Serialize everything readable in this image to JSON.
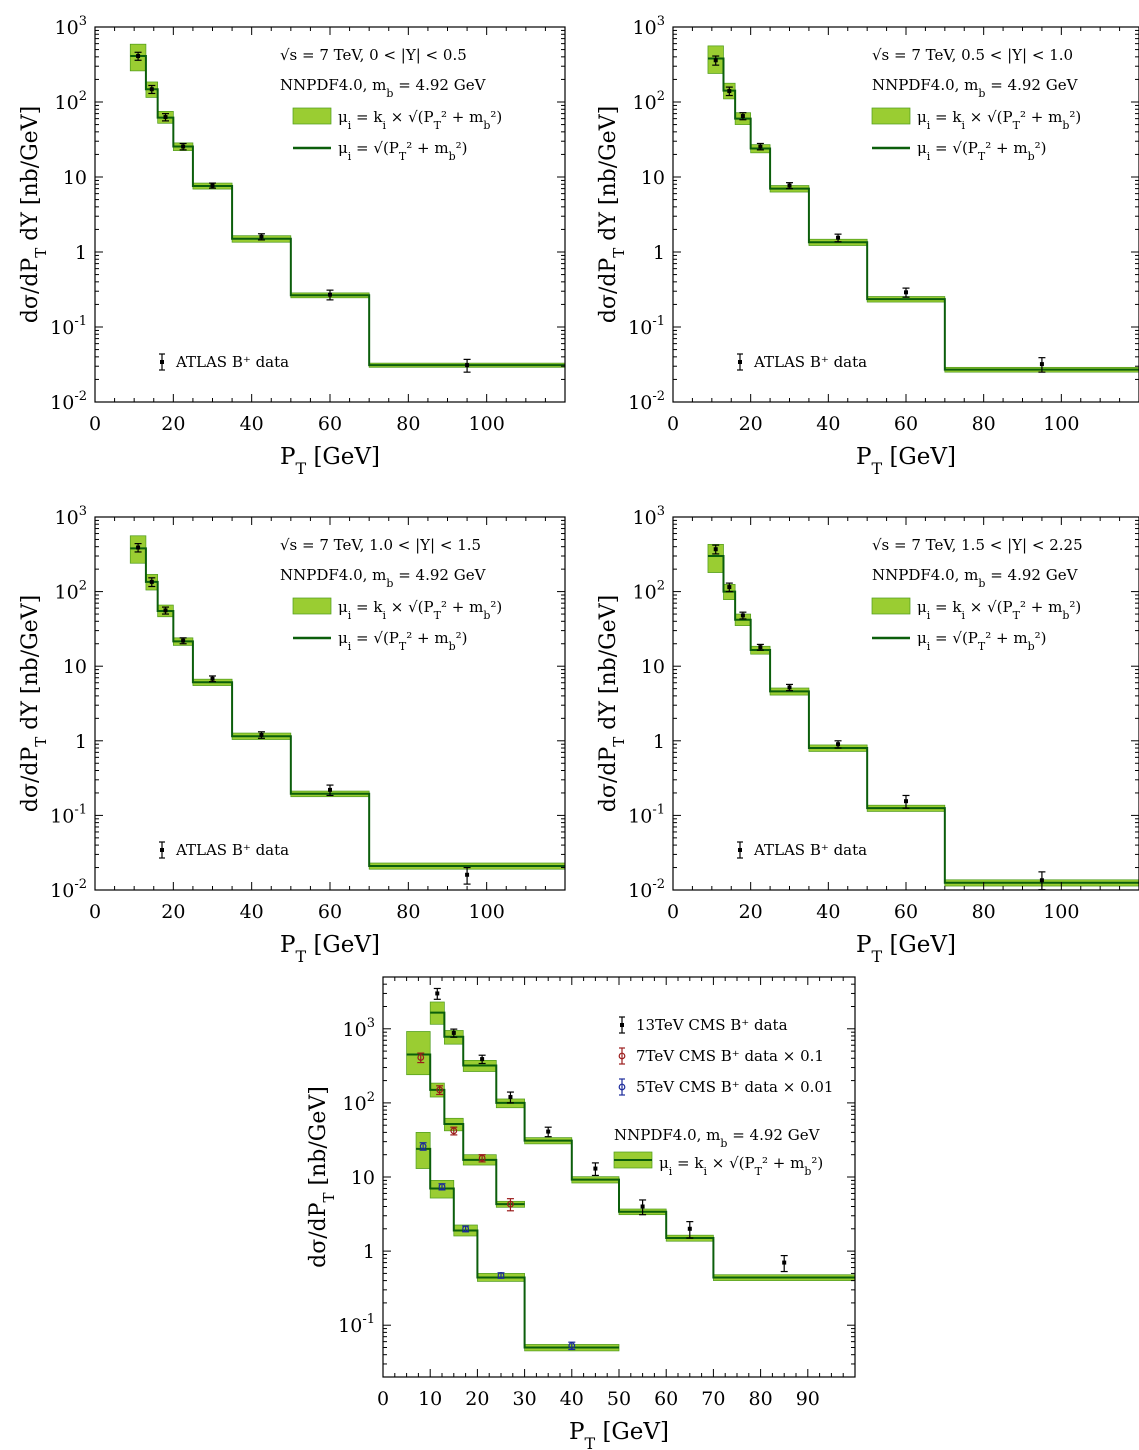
{
  "colors": {
    "band": "#9acd32",
    "band_edge": "#4c9a1a",
    "line": "#0b5e0b",
    "data_atlas": "#000000",
    "data_13": "#000000",
    "data_7": "#9b1c1c",
    "data_5": "#1c2a9b"
  },
  "chart_data": [
    {
      "id": "atlas1",
      "type": "step",
      "xlim": [
        0,
        120
      ],
      "ylim": [
        0.01,
        1000
      ],
      "log_y": true,
      "xticks": [
        0,
        20,
        40,
        60,
        80,
        100
      ],
      "xtick_labels": [
        "0",
        "20",
        "40",
        "60",
        "80",
        "100"
      ],
      "yticks": [
        0.01,
        0.1,
        1,
        10,
        100,
        1000
      ],
      "ytick_labels": [
        {
          "b": "10",
          "e": "-2"
        },
        {
          "b": "10",
          "e": "-1"
        },
        {
          "b": "1",
          "e": ""
        },
        {
          "b": "10",
          "e": ""
        },
        {
          "b": "10",
          "e": "2"
        },
        {
          "b": "10",
          "e": "3"
        }
      ],
      "xlabel": "P_T [GeV]",
      "ylabel": "dσ/dP_T dY [nb/GeV]",
      "annotation_1": "√s = 7 TeV, 0 < |Y| < 0.5",
      "annotation_2": "NNPDF4.0, m_b = 4.92 GeV",
      "legend_band": "μ_i = k_i × √(P_T² + m_b²)",
      "legend_line": "μ_i = √(P_T² + m_b²)",
      "legend_data": "ATLAS B⁺ data",
      "bins": [
        [
          9,
          13,
          410,
          260,
          590
        ],
        [
          13,
          16,
          148,
          115,
          185
        ],
        [
          16,
          20,
          62,
          52,
          75
        ],
        [
          20,
          25,
          25.5,
          22.5,
          28.5
        ],
        [
          25,
          35,
          7.6,
          6.9,
          8.3
        ],
        [
          35,
          50,
          1.5,
          1.35,
          1.65
        ],
        [
          50,
          70,
          0.265,
          0.245,
          0.285
        ],
        [
          70,
          120,
          0.031,
          0.029,
          0.033
        ]
      ],
      "points": [
        [
          11,
          410,
          50
        ],
        [
          14.5,
          148,
          18
        ],
        [
          18,
          63,
          7
        ],
        [
          22.5,
          25.5,
          2.5
        ],
        [
          30,
          7.7,
          0.6
        ],
        [
          42.5,
          1.6,
          0.15
        ],
        [
          60,
          0.27,
          0.04
        ],
        [
          95,
          0.031,
          0.006
        ]
      ]
    },
    {
      "id": "atlas2",
      "type": "step",
      "xlim": [
        0,
        120
      ],
      "ylim": [
        0.01,
        1000
      ],
      "log_y": true,
      "xticks": [
        0,
        20,
        40,
        60,
        80,
        100
      ],
      "xtick_labels": [
        "0",
        "20",
        "40",
        "60",
        "80",
        "100"
      ],
      "yticks": [
        0.01,
        0.1,
        1,
        10,
        100,
        1000
      ],
      "ytick_labels": [
        {
          "b": "10",
          "e": "-2"
        },
        {
          "b": "10",
          "e": "-1"
        },
        {
          "b": "1",
          "e": ""
        },
        {
          "b": "10",
          "e": ""
        },
        {
          "b": "10",
          "e": "2"
        },
        {
          "b": "10",
          "e": "3"
        }
      ],
      "xlabel": "P_T [GeV]",
      "ylabel": "dσ/dP_T dY [nb/GeV]",
      "annotation_1": "√s = 7 TeV, 0.5 < |Y| < 1.0",
      "annotation_2": "NNPDF4.0, m_b = 4.92 GeV",
      "legend_band": "μ_i = k_i × √(P_T² + m_b²)",
      "legend_line": "μ_i = √(P_T² + m_b²)",
      "legend_data": "ATLAS B⁺ data",
      "bins": [
        [
          9,
          13,
          380,
          240,
          560
        ],
        [
          13,
          16,
          142,
          110,
          178
        ],
        [
          16,
          20,
          60,
          50,
          72
        ],
        [
          20,
          25,
          24,
          21,
          27
        ],
        [
          25,
          35,
          7.0,
          6.3,
          7.7
        ],
        [
          35,
          50,
          1.35,
          1.22,
          1.48
        ],
        [
          50,
          70,
          0.235,
          0.215,
          0.255
        ],
        [
          70,
          120,
          0.027,
          0.025,
          0.029
        ]
      ],
      "points": [
        [
          11,
          360,
          50
        ],
        [
          14.5,
          140,
          18
        ],
        [
          18,
          65,
          7
        ],
        [
          22.5,
          25.5,
          2.5
        ],
        [
          30,
          7.7,
          0.7
        ],
        [
          42.5,
          1.55,
          0.18
        ],
        [
          60,
          0.29,
          0.04
        ],
        [
          95,
          0.032,
          0.007
        ]
      ]
    },
    {
      "id": "atlas3",
      "type": "step",
      "xlim": [
        0,
        120
      ],
      "ylim": [
        0.01,
        1000
      ],
      "log_y": true,
      "xticks": [
        0,
        20,
        40,
        60,
        80,
        100
      ],
      "xtick_labels": [
        "0",
        "20",
        "40",
        "60",
        "80",
        "100"
      ],
      "yticks": [
        0.01,
        0.1,
        1,
        10,
        100,
        1000
      ],
      "ytick_labels": [
        {
          "b": "10",
          "e": "-2"
        },
        {
          "b": "10",
          "e": "-1"
        },
        {
          "b": "1",
          "e": ""
        },
        {
          "b": "10",
          "e": ""
        },
        {
          "b": "10",
          "e": "2"
        },
        {
          "b": "10",
          "e": "3"
        }
      ],
      "xlabel": "P_T [GeV]",
      "ylabel": "dσ/dP_T dY [nb/GeV]",
      "annotation_1": "√s = 7 TeV, 1.0 < |Y| < 1.5",
      "annotation_2": "NNPDF4.0, m_b = 4.92 GeV",
      "legend_band": "μ_i = k_i × √(P_T² + m_b²)",
      "legend_line": "μ_i = √(P_T² + m_b²)",
      "legend_data": "ATLAS B⁺ data",
      "bins": [
        [
          9,
          13,
          380,
          240,
          560
        ],
        [
          13,
          16,
          135,
          105,
          170
        ],
        [
          16,
          20,
          55,
          46,
          66
        ],
        [
          20,
          25,
          21.5,
          19,
          24
        ],
        [
          25,
          35,
          6.1,
          5.5,
          6.7
        ],
        [
          35,
          50,
          1.15,
          1.04,
          1.27
        ],
        [
          50,
          70,
          0.195,
          0.178,
          0.212
        ],
        [
          70,
          120,
          0.021,
          0.019,
          0.023
        ]
      ],
      "points": [
        [
          11,
          390,
          50
        ],
        [
          14.5,
          135,
          18
        ],
        [
          18,
          56,
          6
        ],
        [
          22.5,
          22,
          2
        ],
        [
          30,
          6.8,
          0.6
        ],
        [
          42.5,
          1.2,
          0.12
        ],
        [
          60,
          0.22,
          0.035
        ],
        [
          95,
          0.016,
          0.004
        ]
      ]
    },
    {
      "id": "atlas4",
      "type": "step",
      "xlim": [
        0,
        120
      ],
      "ylim": [
        0.01,
        1000
      ],
      "log_y": true,
      "xticks": [
        0,
        20,
        40,
        60,
        80,
        100
      ],
      "xtick_labels": [
        "0",
        "20",
        "40",
        "60",
        "80",
        "100"
      ],
      "yticks": [
        0.01,
        0.1,
        1,
        10,
        100,
        1000
      ],
      "ytick_labels": [
        {
          "b": "10",
          "e": "-2"
        },
        {
          "b": "10",
          "e": "-1"
        },
        {
          "b": "1",
          "e": ""
        },
        {
          "b": "10",
          "e": ""
        },
        {
          "b": "10",
          "e": "2"
        },
        {
          "b": "10",
          "e": "3"
        }
      ],
      "xlabel": "P_T [GeV]",
      "ylabel": "dσ/dP_T dY [nb/GeV]",
      "annotation_1": "√s = 7 TeV, 1.5 < |Y| < 2.25",
      "annotation_2": "NNPDF4.0, m_b = 4.92 GeV",
      "legend_band": "μ_i = k_i × √(P_T² + m_b²)",
      "legend_line": "μ_i = √(P_T² + m_b²)",
      "legend_data": "ATLAS B⁺ data",
      "bins": [
        [
          9,
          13,
          300,
          180,
          430
        ],
        [
          13,
          16,
          100,
          78,
          125
        ],
        [
          16,
          20,
          42,
          35,
          50
        ],
        [
          20,
          25,
          16.5,
          14.5,
          18.5
        ],
        [
          25,
          35,
          4.6,
          4.1,
          5.1
        ],
        [
          35,
          50,
          0.8,
          0.72,
          0.88
        ],
        [
          50,
          70,
          0.125,
          0.113,
          0.137
        ],
        [
          70,
          120,
          0.0125,
          0.0113,
          0.0137
        ]
      ],
      "points": [
        [
          11,
          370,
          50
        ],
        [
          14.5,
          115,
          15
        ],
        [
          18,
          48,
          5
        ],
        [
          22.5,
          18,
          1.6
        ],
        [
          30,
          5.2,
          0.5
        ],
        [
          42.5,
          0.9,
          0.1
        ],
        [
          60,
          0.155,
          0.03
        ],
        [
          95,
          0.0135,
          0.004
        ]
      ]
    },
    {
      "id": "cms",
      "type": "step",
      "xlim": [
        0,
        100
      ],
      "ylim": [
        0.02,
        5000
      ],
      "log_y": true,
      "xticks": [
        0,
        10,
        20,
        30,
        40,
        50,
        60,
        70,
        80,
        90
      ],
      "xtick_labels": [
        "0",
        "10",
        "20",
        "30",
        "40",
        "50",
        "60",
        "70",
        "80",
        "90"
      ],
      "yticks": [
        0.1,
        1,
        10,
        100,
        1000
      ],
      "ytick_labels": [
        {
          "b": "10",
          "e": "-1"
        },
        {
          "b": "1",
          "e": ""
        },
        {
          "b": "10",
          "e": ""
        },
        {
          "b": "10",
          "e": "2"
        },
        {
          "b": "10",
          "e": "3"
        }
      ],
      "xlabel": "P_T [GeV]",
      "ylabel": "dσ/dP_T [nb/GeV]",
      "annotation_2": "NNPDF4.0, m_b = 4.92 GeV",
      "legend_band": "μ_i = k_i × √(P_T² + m_b²)",
      "series": [
        {
          "name": "13TeV CMS B⁺ data",
          "color_key": "data_13",
          "marker": "square",
          "bins": [
            [
              10,
              13,
              1650,
              1150,
              2300
            ],
            [
              13,
              17,
              780,
              620,
              950
            ],
            [
              17,
              24,
              320,
              265,
              375
            ],
            [
              24,
              30,
              100,
              86,
              113
            ],
            [
              30,
              40,
              31,
              28,
              34
            ],
            [
              40,
              50,
              9.2,
              8.3,
              10.1
            ],
            [
              50,
              60,
              3.4,
              3.1,
              3.7
            ],
            [
              60,
              70,
              1.5,
              1.36,
              1.64
            ],
            [
              70,
              100,
              0.44,
              0.4,
              0.48
            ]
          ],
          "points": [
            [
              11.5,
              3000,
              500
            ],
            [
              15,
              880,
              110
            ],
            [
              21,
              390,
              50
            ],
            [
              27,
              120,
              20
            ],
            [
              35,
              41,
              6
            ],
            [
              45,
              13,
              2.5
            ],
            [
              55,
              4.0,
              0.9
            ],
            [
              65,
              2.0,
              0.5
            ],
            [
              85,
              0.7,
              0.17
            ]
          ]
        },
        {
          "name": "7TeV CMS B⁺ data × 0.1",
          "color_key": "data_7",
          "marker": "circle",
          "bins": [
            [
              5,
              10,
              450,
              240,
              920
            ],
            [
              10,
              13,
              150,
              120,
              185
            ],
            [
              13,
              17,
              52,
              42,
              62
            ],
            [
              17,
              24,
              17,
              14.5,
              20
            ],
            [
              24,
              30,
              4.3,
              3.9,
              4.7
            ]
          ],
          "points": [
            [
              8,
              410,
              60
            ],
            [
              12,
              150,
              20
            ],
            [
              15,
              42,
              5
            ],
            [
              21,
              18,
              2
            ],
            [
              27,
              4.3,
              0.8
            ]
          ]
        },
        {
          "name": "5TeV CMS B⁺ data × 0.01",
          "color_key": "data_5",
          "marker": "circle",
          "bins": [
            [
              7,
              10,
              24,
              13,
              40
            ],
            [
              10,
              15,
              7.0,
              5.2,
              9.0
            ],
            [
              15,
              20,
              1.9,
              1.6,
              2.25
            ],
            [
              20,
              30,
              0.44,
              0.39,
              0.5
            ],
            [
              30,
              50,
              0.05,
              0.045,
              0.055
            ]
          ],
          "points": [
            [
              8.5,
              26,
              3
            ],
            [
              12.5,
              7.4,
              0.7
            ],
            [
              17.5,
              2.0,
              0.18
            ],
            [
              25,
              0.47,
              0.04
            ],
            [
              40,
              0.053,
              0.006
            ]
          ]
        }
      ]
    }
  ]
}
